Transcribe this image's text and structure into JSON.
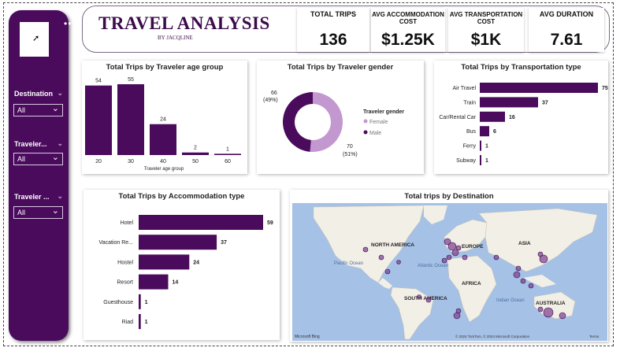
{
  "header": {
    "title": "TRAVEL ANALYSIS",
    "subtitle": "BY JACQLINE"
  },
  "kpis": [
    {
      "label": "TOTAL TRIPS",
      "value": "136"
    },
    {
      "label": "AVG ACCOMMODATION COST",
      "value": "$1.25K"
    },
    {
      "label": "AVG TRANSPORTATION COST",
      "value": "$1K"
    },
    {
      "label": "AVG DURATION",
      "value": "7.61"
    }
  ],
  "sidebar": {
    "more_icon": "•••",
    "slicers": [
      {
        "label": "Destination",
        "value": "All"
      },
      {
        "label": "Traveler...",
        "value": "All"
      },
      {
        "label": "Traveler ...",
        "value": "All"
      }
    ]
  },
  "colors": {
    "primary": "#4a0b5c",
    "secondary": "#c397cf",
    "map_water": "#a6c1e6",
    "map_land": "#f2efe6"
  },
  "charts": {
    "age": {
      "title": "Total Trips by Traveler age group",
      "chart_data": {
        "type": "bar",
        "categories": [
          "20",
          "30",
          "40",
          "50",
          "60"
        ],
        "values": [
          54,
          55,
          24,
          2,
          1
        ],
        "xlabel": "Traveler age group"
      }
    },
    "gender": {
      "title": "Total Trips by Traveler gender",
      "legend_title": "Traveler gender",
      "chart_data": {
        "type": "pie",
        "categories": [
          "Female",
          "Male"
        ],
        "values": [
          70,
          66
        ],
        "labels": [
          "70\n(51%)",
          "66\n(49%)"
        ]
      }
    },
    "transport": {
      "title": "Total Trips by Transportation type",
      "chart_data": {
        "type": "bar",
        "categories": [
          "Air Travel",
          "Train",
          "Car/Rental Car",
          "Bus",
          "Ferry",
          "Subway"
        ],
        "values": [
          75,
          37,
          16,
          6,
          1,
          1
        ]
      }
    },
    "accommodation": {
      "title": "Total Trips by Accommodation type",
      "chart_data": {
        "type": "bar",
        "categories": [
          "Hotel",
          "Vacation Re...",
          "Hostel",
          "Resort",
          "Guesthouse",
          "Riad"
        ],
        "values": [
          59,
          37,
          24,
          14,
          1,
          1
        ]
      }
    },
    "destination": {
      "title": "Total trips by Destination",
      "continents": [
        "NORTH AMERICA",
        "EUROPE",
        "ASIA",
        "AFRICA",
        "SOUTH AMERICA",
        "AUSTRALIA"
      ],
      "oceans": [
        "Pacific Ocean",
        "Atlantic Ocean",
        "Indian Ocean"
      ],
      "attribution": "© 2024 TomTom, © 2024 Microsoft Corporation",
      "terms": "Terms",
      "brand": "Microsoft Bing"
    }
  }
}
